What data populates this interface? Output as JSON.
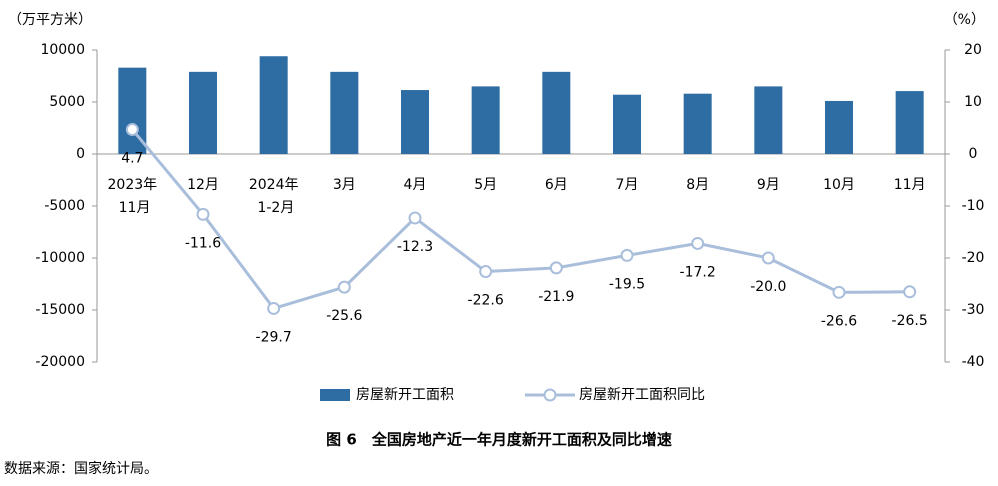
{
  "chart_data": {
    "type": "bar-line",
    "title": "图 6　全国房地产近一年月度新开工面积及同比增速",
    "source": "数据来源：国家统计局。",
    "y_label": "（万平方米）",
    "y2_label": "（%）",
    "categories": [
      "2023年\n11月",
      "12月",
      "2024年\n1-2月",
      "3月",
      "4月",
      "5月",
      "6月",
      "7月",
      "8月",
      "9月",
      "10月",
      "11月"
    ],
    "series": [
      {
        "name": "房屋新开工面积",
        "type": "bar",
        "color": "#2e6ca4",
        "values": [
          8300,
          7900,
          9400,
          7900,
          6150,
          6500,
          7900,
          5700,
          5800,
          6500,
          5100,
          6050
        ]
      },
      {
        "name": "房屋新开工面积同比",
        "type": "line",
        "axis": "y2",
        "color": "#a9bedb",
        "values": [
          4.7,
          -11.6,
          -29.7,
          -25.6,
          -12.3,
          -22.6,
          -21.9,
          -19.5,
          -17.2,
          -20.0,
          -26.6,
          -26.5
        ],
        "value_labels": [
          "4.7",
          "-11.6",
          "-29.7",
          "-25.6",
          "-12.3",
          "-22.6",
          "-21.9",
          "-19.5",
          "-17.2",
          "-20.0",
          "-26.6",
          "-26.5"
        ]
      }
    ],
    "ylim": [
      -20000,
      10000
    ],
    "yticks": [
      -20000,
      -15000,
      -10000,
      -5000,
      0,
      5000,
      10000
    ],
    "y2lim": [
      -40,
      20
    ],
    "y2ticks": [
      -40,
      -30,
      -20,
      -10,
      0,
      10,
      20
    ]
  }
}
